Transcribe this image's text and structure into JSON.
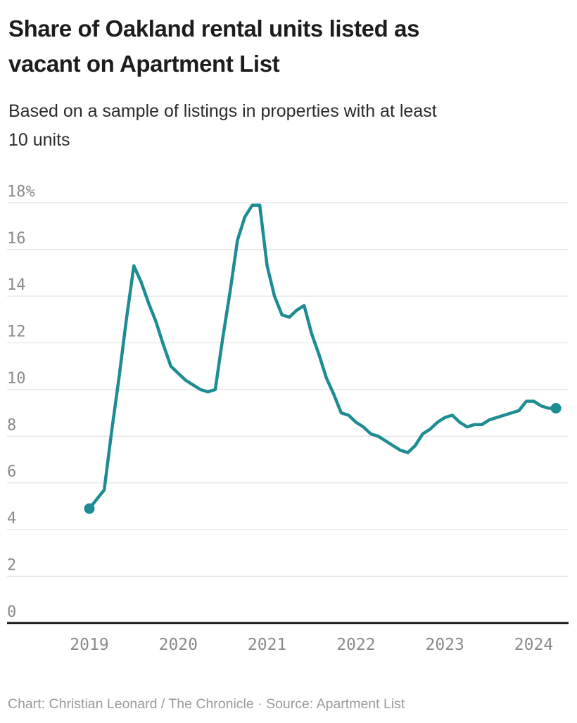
{
  "header": {
    "title": "Share of Oakland rental units listed as\nvacant on Apartment List",
    "subtitle": "Based on a sample of listings in properties with at least\n10 units"
  },
  "chart_data": {
    "type": "line",
    "title": "Share of Oakland rental units listed as vacant on Apartment List",
    "subtitle": "Based on a sample of listings in properties with at least 10 units",
    "series_name": "Share of rental units listed as vacant (%)",
    "x": [
      "2019-01",
      "2019-02",
      "2019-03",
      "2019-04",
      "2019-05",
      "2019-06",
      "2019-07",
      "2019-08",
      "2019-09",
      "2019-10",
      "2019-11",
      "2019-12",
      "2020-01",
      "2020-02",
      "2020-03",
      "2020-04",
      "2020-05",
      "2020-06",
      "2020-07",
      "2020-08",
      "2020-09",
      "2020-10",
      "2020-11",
      "2020-12",
      "2021-01",
      "2021-02",
      "2021-03",
      "2021-04",
      "2021-05",
      "2021-06",
      "2021-07",
      "2021-08",
      "2021-09",
      "2021-10",
      "2021-11",
      "2021-12",
      "2022-01",
      "2022-02",
      "2022-03",
      "2022-04",
      "2022-05",
      "2022-06",
      "2022-07",
      "2022-08",
      "2022-09",
      "2022-10",
      "2022-11",
      "2022-12",
      "2023-01",
      "2023-02",
      "2023-03",
      "2023-04",
      "2023-05",
      "2023-06",
      "2023-07",
      "2023-08",
      "2023-09",
      "2023-10",
      "2023-11",
      "2023-12",
      "2024-01",
      "2024-02",
      "2024-03",
      "2024-04"
    ],
    "values": [
      4.9,
      5.3,
      5.7,
      8.2,
      10.5,
      13.0,
      15.3,
      14.6,
      13.7,
      12.9,
      11.9,
      11.0,
      10.7,
      10.4,
      10.2,
      10.0,
      9.9,
      10.0,
      12.2,
      14.2,
      16.4,
      17.4,
      17.9,
      17.9,
      15.3,
      14.0,
      13.2,
      13.1,
      13.4,
      13.6,
      12.4,
      11.5,
      10.5,
      9.8,
      9.0,
      8.9,
      8.6,
      8.4,
      8.1,
      8.0,
      7.8,
      7.6,
      7.4,
      7.3,
      7.6,
      8.1,
      8.3,
      8.6,
      8.8,
      8.9,
      8.6,
      8.4,
      8.5,
      8.5,
      8.7,
      8.8,
      8.9,
      9.0,
      9.1,
      9.5,
      9.5,
      9.3,
      9.2,
      9.2
    ],
    "ylim": [
      0,
      18
    ],
    "y_ticks": [
      {
        "value": 0,
        "label": "0"
      },
      {
        "value": 2,
        "label": "2"
      },
      {
        "value": 4,
        "label": "4"
      },
      {
        "value": 6,
        "label": "6"
      },
      {
        "value": 8,
        "label": "8"
      },
      {
        "value": 10,
        "label": "10"
      },
      {
        "value": 12,
        "label": "12"
      },
      {
        "value": 14,
        "label": "14"
      },
      {
        "value": 16,
        "label": "16"
      },
      {
        "value": 18,
        "label": "18%"
      }
    ],
    "x_ticks": [
      {
        "month_index": 0,
        "label": "2019"
      },
      {
        "month_index": 12,
        "label": "2020"
      },
      {
        "month_index": 24,
        "label": "2021"
      },
      {
        "month_index": 36,
        "label": "2022"
      },
      {
        "month_index": 48,
        "label": "2023"
      },
      {
        "month_index": 60,
        "label": "2024"
      }
    ],
    "grid": true,
    "legend_position": "none",
    "marker": "first-and-last-point",
    "colors": {
      "line": "#1d8c93",
      "grid": "#e3e3e3",
      "zero_line": "#1a1a1a",
      "tick_text": "#8a8a8a"
    }
  },
  "footer": {
    "credit": "Chart: Christian Leonard / The Chronicle · Source: Apartment List"
  }
}
